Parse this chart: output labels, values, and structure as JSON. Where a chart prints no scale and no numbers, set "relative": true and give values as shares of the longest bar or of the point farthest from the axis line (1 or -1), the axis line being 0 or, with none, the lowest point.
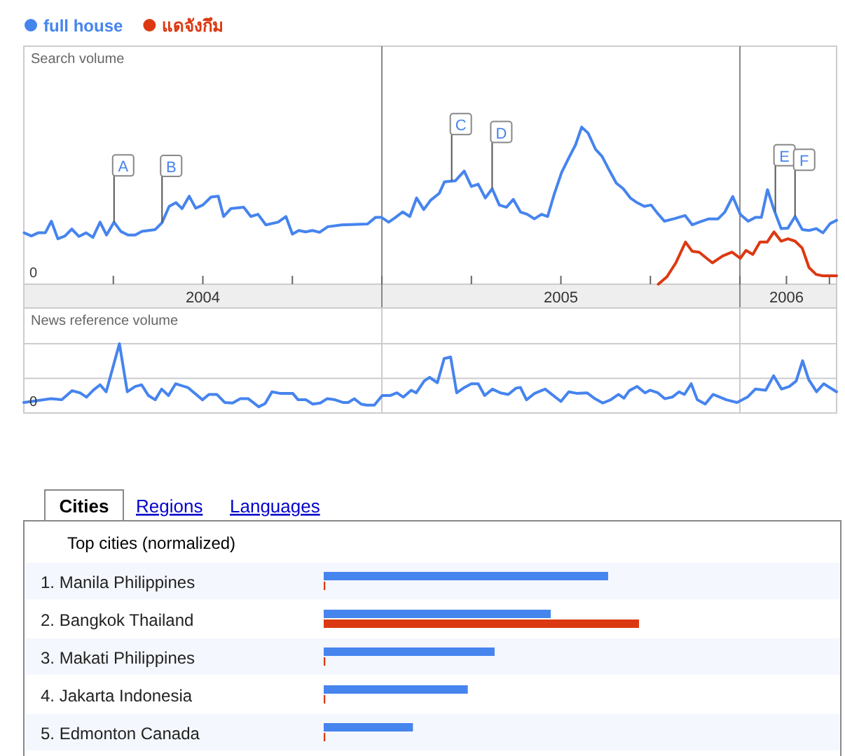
{
  "chart_data": [
    {
      "type": "line",
      "ylabel": "Search volume",
      "relative": true,
      "xlim": [
        2004,
        2006.27
      ],
      "xticks": [
        {
          "value": 2004.25,
          "label": null
        },
        {
          "value": 2004.5,
          "label": "2004"
        },
        {
          "value": 2004.75,
          "label": null
        },
        {
          "value": 2005,
          "label": null
        },
        {
          "value": 2005.25,
          "label": null
        },
        {
          "value": 2005.5,
          "label": "2005"
        },
        {
          "value": 2005.75,
          "label": null
        },
        {
          "value": 2006,
          "label": null
        },
        {
          "value": 2006.13,
          "label": "2006"
        },
        {
          "value": 2006.25,
          "label": null
        }
      ],
      "grid": "x",
      "legend": "top left",
      "series": [
        {
          "name": "full house",
          "color": "#4684ee",
          "x": [
            2004.001,
            2004.021,
            2004.04,
            2004.06,
            2004.077,
            2004.095,
            2004.115,
            2004.134,
            2004.154,
            2004.174,
            2004.193,
            2004.213,
            2004.231,
            2004.252,
            2004.271,
            2004.291,
            2004.311,
            2004.33,
            2004.367,
            2004.386,
            2004.406,
            2004.425,
            2004.442,
            2004.462,
            2004.48,
            2004.5,
            2004.523,
            2004.543,
            2004.558,
            2004.578,
            2004.614,
            2004.634,
            2004.654,
            2004.676,
            2004.71,
            2004.732,
            2004.75,
            2004.768,
            2004.787,
            2004.806,
            2004.826,
            2004.849,
            2004.888,
            2004.96,
            2004.982,
            2004.999,
            2005.019,
            2005.038,
            2005.058,
            2005.078,
            2005.097,
            2005.117,
            2005.136,
            2005.16,
            2005.175,
            2005.205,
            2005.23,
            2005.25,
            2005.269,
            2005.289,
            2005.308,
            2005.328,
            2005.348,
            2005.367,
            2005.387,
            2005.406,
            2005.426,
            2005.446,
            2005.463,
            2005.482,
            2005.502,
            2005.521,
            2005.541,
            2005.558,
            2005.576,
            2005.597,
            2005.615,
            2005.635,
            2005.655,
            2005.674,
            2005.694,
            2005.713,
            2005.733,
            2005.752,
            2005.769,
            2005.789,
            2005.815,
            2005.847,
            2005.867,
            2005.886,
            2005.913,
            2005.939,
            2005.958,
            2005.98,
            2006.001,
            2006.023,
            2006.043,
            2006.06,
            2006.077,
            2006.095,
            2006.115,
            2006.134,
            2006.154,
            2006.174,
            2006.193,
            2006.213,
            2006.232,
            2006.252,
            2006.27
          ],
          "values": [
            0.327,
            0.307,
            0.327,
            0.327,
            0.401,
            0.289,
            0.307,
            0.351,
            0.304,
            0.327,
            0.298,
            0.395,
            0.313,
            0.395,
            0.336,
            0.313,
            0.313,
            0.336,
            0.348,
            0.392,
            0.496,
            0.519,
            0.481,
            0.56,
            0.484,
            0.504,
            0.555,
            0.56,
            0.431,
            0.481,
            0.49,
            0.431,
            0.445,
            0.378,
            0.395,
            0.431,
            0.319,
            0.342,
            0.333,
            0.342,
            0.33,
            0.366,
            0.378,
            0.383,
            0.425,
            0.425,
            0.395,
            0.425,
            0.46,
            0.431,
            0.549,
            0.475,
            0.534,
            0.578,
            0.652,
            0.658,
            0.72,
            0.622,
            0.637,
            0.549,
            0.608,
            0.504,
            0.49,
            0.54,
            0.46,
            0.445,
            0.416,
            0.445,
            0.431,
            0.578,
            0.711,
            0.799,
            0.888,
            1.0,
            0.962,
            0.858,
            0.814,
            0.726,
            0.643,
            0.608,
            0.549,
            0.519,
            0.496,
            0.504,
            0.454,
            0.401,
            0.416,
            0.437,
            0.378,
            0.395,
            0.416,
            0.416,
            0.46,
            0.558,
            0.445,
            0.401,
            0.425,
            0.425,
            0.602,
            0.475,
            0.354,
            0.357,
            0.431,
            0.348,
            0.342,
            0.354,
            0.327,
            0.386,
            0.407
          ]
        },
        {
          "name": "แดจังกึม",
          "color": "#dc3912",
          "x": [
            2005.772,
            2005.796,
            2005.821,
            2005.848,
            2005.867,
            2005.886,
            2005.923,
            2005.952,
            2005.978,
            2006.001,
            2006.017,
            2006.036,
            2006.056,
            2006.076,
            2006.095,
            2006.115,
            2006.134,
            2006.154,
            2006.174,
            2006.193,
            2006.213,
            2006.232,
            2006.27
          ],
          "values": [
            0,
            0.047,
            0.136,
            0.268,
            0.209,
            0.204,
            0.136,
            0.18,
            0.204,
            0.165,
            0.215,
            0.189,
            0.268,
            0.268,
            0.333,
            0.274,
            0.289,
            0.274,
            0.23,
            0.106,
            0.062,
            0.053,
            0.053
          ]
        }
      ],
      "annotations": [
        "0",
        {
          "text": "A",
          "x": 2004.252,
          "y": 0.395
        },
        {
          "text": "B",
          "x": 2004.386,
          "y": 0.392
        },
        {
          "text": "C",
          "x": 2005.195,
          "y": 0.658
        },
        {
          "text": "D",
          "x": 2005.308,
          "y": 0.608
        },
        {
          "text": "E",
          "x": 2006.099,
          "y": 0.46
        },
        {
          "text": "F",
          "x": 2006.154,
          "y": 0.431
        }
      ]
    },
    {
      "type": "line",
      "ylabel": "News reference volume",
      "relative": true,
      "xlim": [
        2004,
        2006.27
      ],
      "tick_labels": false,
      "grid": true,
      "annotations": [
        "0"
      ],
      "series": [
        {
          "color": "#4684ee",
          "x": [
            2004.0,
            2004.032,
            2004.076,
            2004.106,
            2004.135,
            2004.157,
            2004.175,
            2004.194,
            2004.213,
            2004.23,
            2004.267,
            2004.289,
            2004.311,
            2004.329,
            2004.348,
            2004.367,
            2004.385,
            2004.404,
            2004.424,
            2004.458,
            2004.499,
            2004.517,
            2004.539,
            2004.561,
            2004.583,
            2004.605,
            2004.627,
            2004.656,
            2004.674,
            2004.693,
            2004.715,
            2004.751,
            2004.766,
            2004.788,
            2004.807,
            2004.828,
            2004.847,
            2004.869,
            2004.891,
            2004.906,
            2004.923,
            2004.942,
            2004.957,
            2004.979,
            2005.001,
            2005.023,
            2005.042,
            2005.06,
            2005.082,
            2005.096,
            2005.118,
            2005.133,
            2005.155,
            2005.174,
            2005.192,
            2005.209,
            2005.228,
            2005.25,
            2005.269,
            2005.287,
            2005.309,
            2005.331,
            2005.353,
            2005.375,
            2005.387,
            2005.404,
            2005.427,
            2005.456,
            2005.5,
            2005.522,
            2005.544,
            2005.573,
            2005.595,
            2005.617,
            2005.639,
            2005.661,
            2005.676,
            2005.691,
            2005.713,
            2005.735,
            2005.749,
            2005.771,
            2005.79,
            2005.811,
            2005.83,
            2005.845,
            2005.864,
            2005.881,
            2005.903,
            2005.925,
            2005.962,
            2005.992,
            2006.021,
            2006.043,
            2006.072,
            2006.094,
            2006.116,
            2006.138,
            2006.157,
            2006.175,
            2006.192,
            2006.214,
            2006.234,
            2006.27
          ],
          "values": [
            0.152,
            0.175,
            0.206,
            0.191,
            0.322,
            0.291,
            0.229,
            0.329,
            0.407,
            0.306,
            1.0,
            0.306,
            0.383,
            0.407,
            0.252,
            0.191,
            0.345,
            0.252,
            0.422,
            0.368,
            0.191,
            0.268,
            0.268,
            0.152,
            0.144,
            0.206,
            0.206,
            0.09,
            0.137,
            0.306,
            0.284,
            0.284,
            0.191,
            0.191,
            0.129,
            0.144,
            0.206,
            0.191,
            0.152,
            0.152,
            0.206,
            0.129,
            0.113,
            0.113,
            0.252,
            0.252,
            0.291,
            0.229,
            0.329,
            0.291,
            0.461,
            0.515,
            0.437,
            0.785,
            0.808,
            0.291,
            0.36,
            0.422,
            0.422,
            0.252,
            0.345,
            0.291,
            0.268,
            0.36,
            0.368,
            0.191,
            0.284,
            0.345,
            0.167,
            0.306,
            0.284,
            0.291,
            0.206,
            0.144,
            0.191,
            0.268,
            0.214,
            0.322,
            0.383,
            0.291,
            0.329,
            0.291,
            0.206,
            0.229,
            0.306,
            0.268,
            0.422,
            0.191,
            0.129,
            0.268,
            0.191,
            0.152,
            0.229,
            0.345,
            0.329,
            0.537,
            0.345,
            0.383,
            0.461,
            0.754,
            0.484,
            0.306,
            0.422,
            0.306
          ]
        }
      ]
    },
    {
      "type": "bar",
      "orientation": "horizontal",
      "relative": true,
      "title": "Top cities (normalized)",
      "annotations": [
        "Cities",
        "Regions",
        "Languages"
      ],
      "categories": [
        "1. Manila Philippines",
        "2. Bangkok Thailand",
        "3. Makati Philippines",
        "4. Jakarta Indonesia",
        "5. Edmonton Canada"
      ],
      "series": [
        {
          "color": "#4684ee",
          "values": [
            0.902,
            0.72,
            0.542,
            0.457,
            0.283
          ]
        },
        {
          "color": "#dc3912",
          "values": [
            0.005,
            1.0,
            0.005,
            0.005,
            0.005
          ]
        }
      ]
    }
  ]
}
